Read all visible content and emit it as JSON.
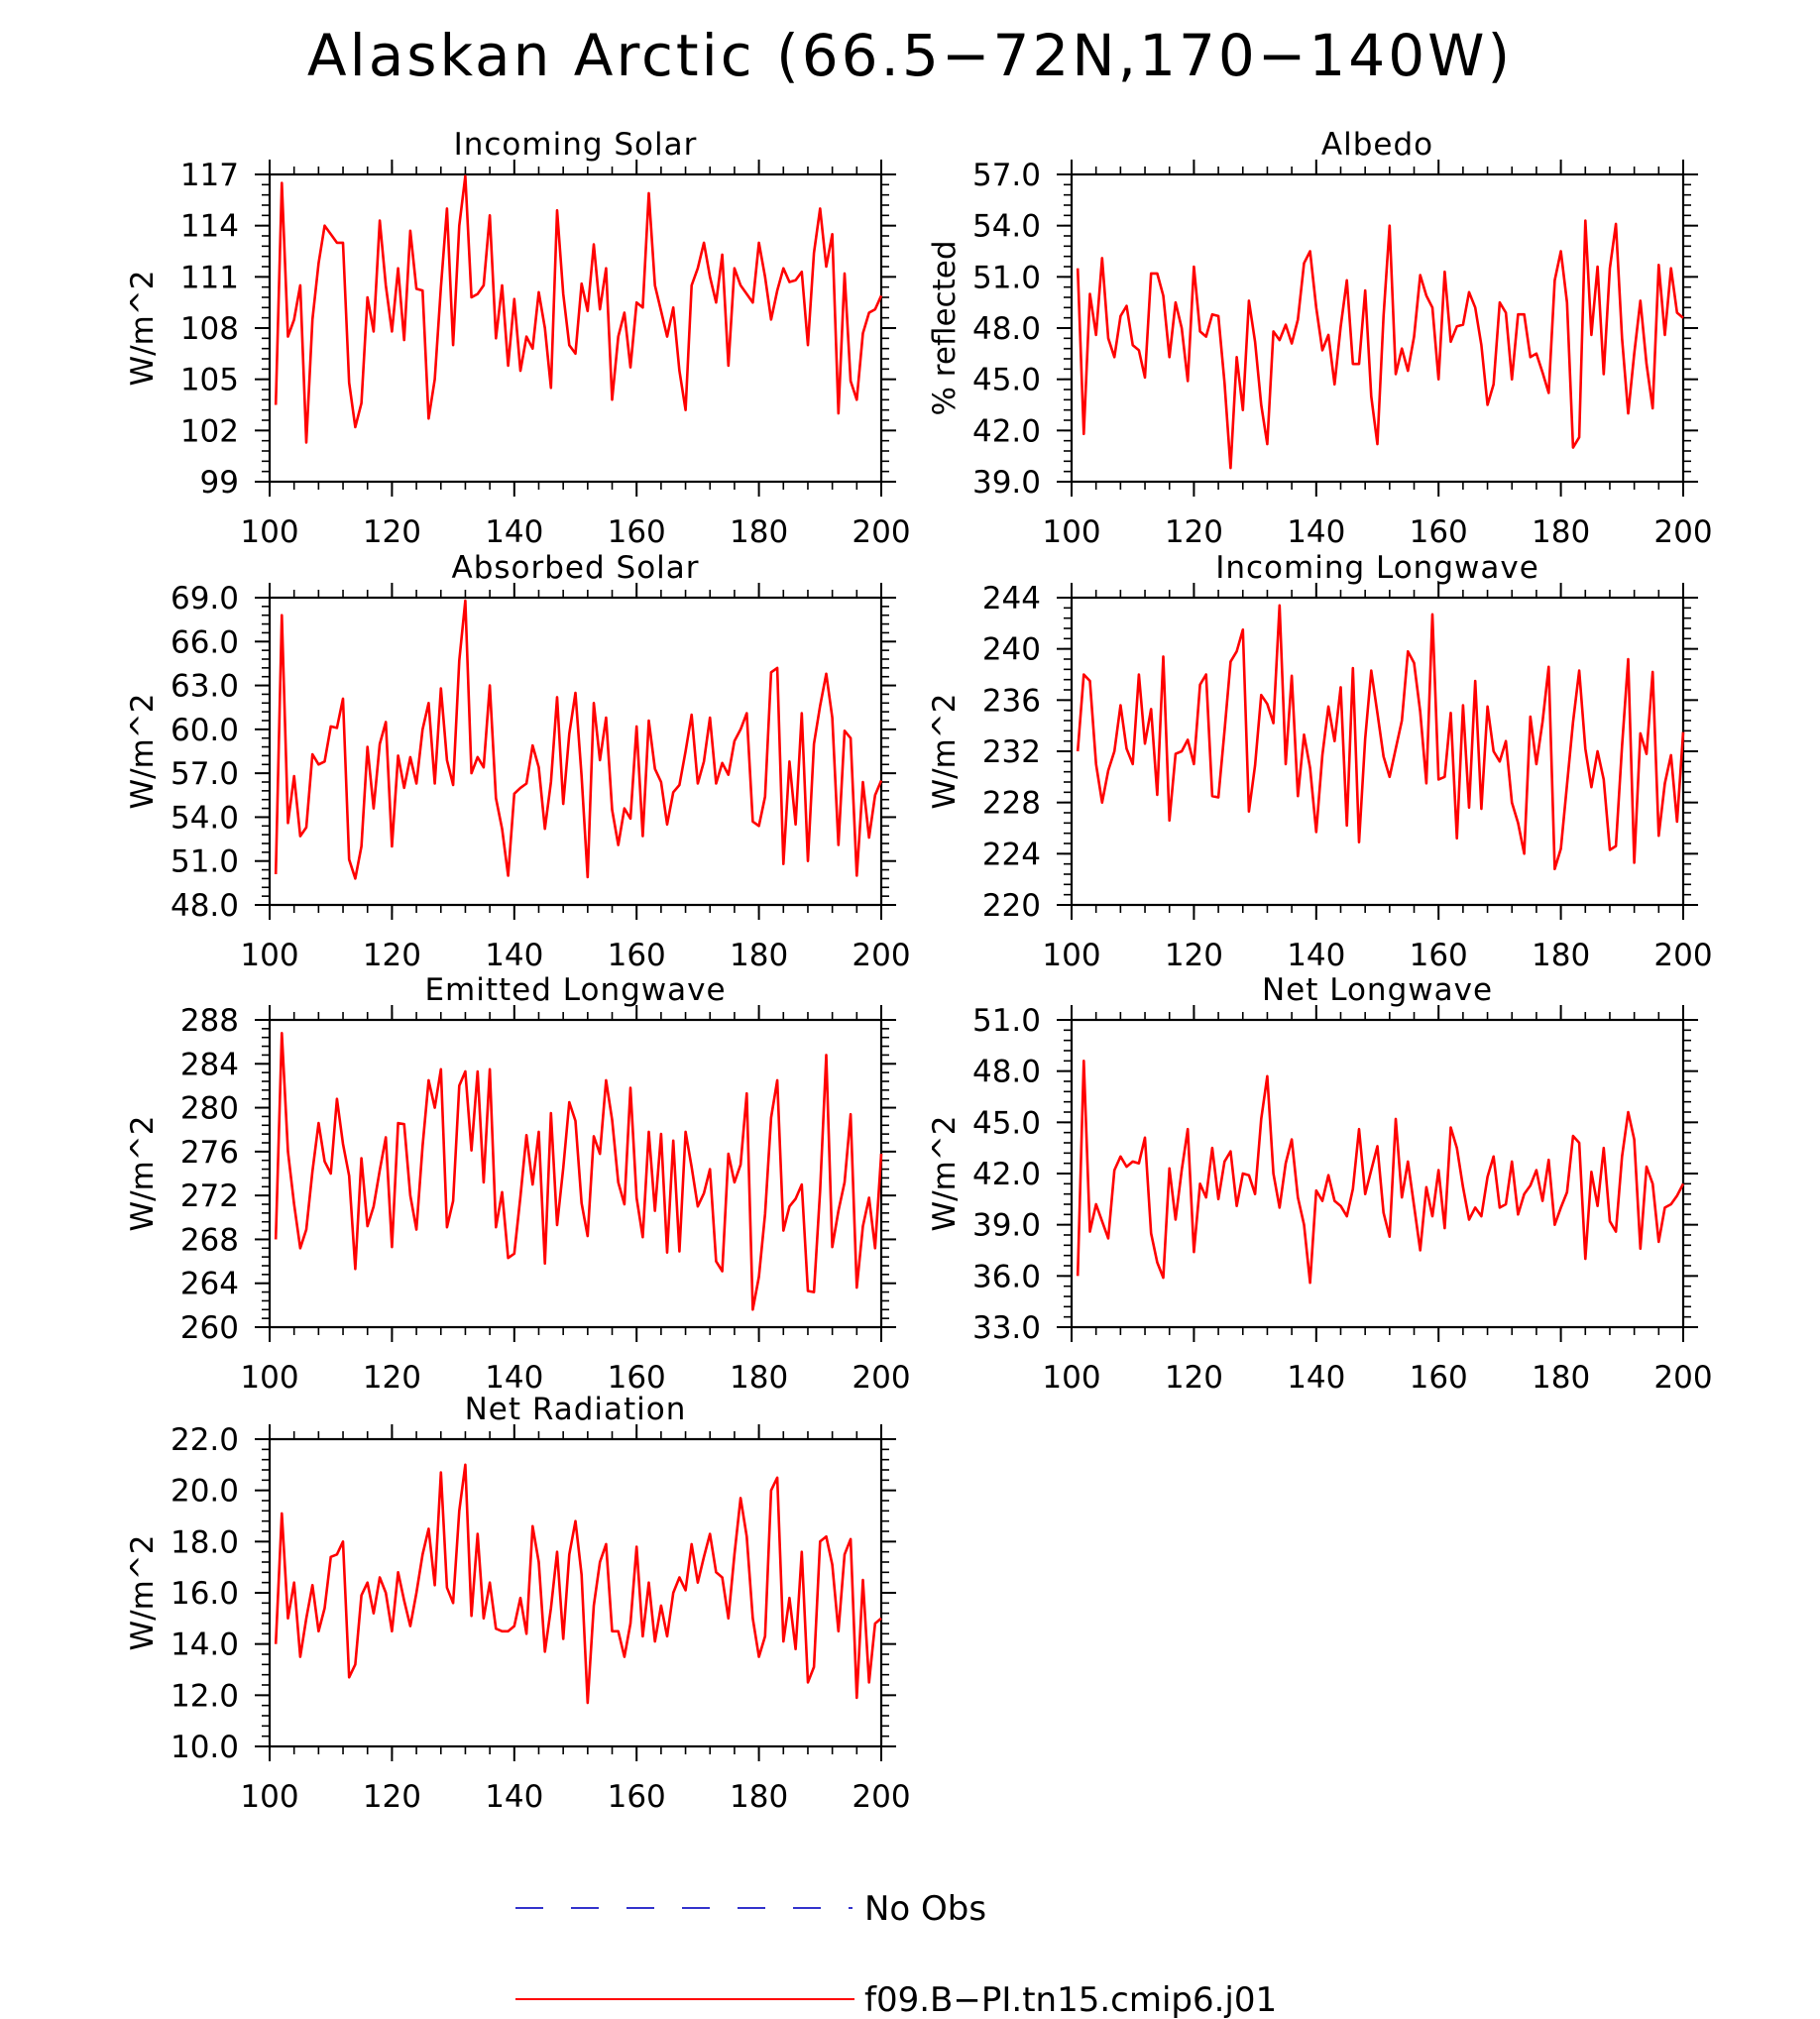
{
  "title": "Alaskan Arctic (66.5−72N,170−140W)",
  "colors": {
    "model": "#ff0000",
    "obs": "#3333cc",
    "axis": "#000000"
  },
  "legend": [
    {
      "label": "No Obs",
      "style": "dashed",
      "color": "#3333cc"
    },
    {
      "label": "f09.B−PI.tn15.cmip6.j01",
      "style": "solid",
      "color": "#ff0000"
    }
  ],
  "chart_data": [
    {
      "type": "line",
      "title": "Incoming Solar",
      "ylabel": "W/m^2",
      "xlim": [
        100,
        200
      ],
      "ylim": [
        99,
        117
      ],
      "xticks": [
        "100",
        "120",
        "140",
        "160",
        "180",
        "200"
      ],
      "yticks": [
        "99",
        "102",
        "105",
        "108",
        "111",
        "114",
        "117"
      ],
      "series": [
        {
          "name": "f09.B−PI.tn15.cmip6.j01",
          "x0": 101,
          "values": [
            103.5,
            116.5,
            107.5,
            108.5,
            110.5,
            101.3,
            108.5,
            111.8,
            114.0,
            113.5,
            113.0,
            113.0,
            104.8,
            102.2,
            103.6,
            109.8,
            107.8,
            114.3,
            110.5,
            107.8,
            111.5,
            107.3,
            113.7,
            110.3,
            110.2,
            102.7,
            105.0,
            110.4,
            115.0,
            107.0,
            114.0,
            116.9,
            109.8,
            110.0,
            110.5,
            114.6,
            107.4,
            110.5,
            105.8,
            109.7,
            105.5,
            107.5,
            106.8,
            110.1,
            108.0,
            104.5,
            114.9,
            110.0,
            107.0,
            106.5,
            110.6,
            109.0,
            112.9,
            109.1,
            111.5,
            103.8,
            107.5,
            108.9,
            105.7,
            109.5,
            109.2,
            115.9,
            110.5,
            109.0,
            107.5,
            109.2,
            105.5,
            103.2,
            110.5,
            111.5,
            113.0,
            111.0,
            109.5,
            112.3,
            105.8,
            111.5,
            110.5,
            110.0,
            109.5,
            113.0,
            111.0,
            108.5,
            110.2,
            111.5,
            110.7,
            110.8,
            111.3,
            107.0,
            112.4,
            115.0,
            111.6,
            113.5,
            103.0,
            111.2,
            104.9,
            103.8,
            107.7,
            108.9,
            109.1,
            109.9
          ]
        }
      ]
    },
    {
      "type": "line",
      "title": "Albedo",
      "ylabel": "% reflected",
      "xlim": [
        100,
        200
      ],
      "ylim": [
        39,
        57
      ],
      "xticks": [
        "100",
        "120",
        "140",
        "160",
        "180",
        "200"
      ],
      "yticks": [
        "39.0",
        "42.0",
        "45.0",
        "48.0",
        "51.0",
        "54.0",
        "57.0"
      ],
      "series": [
        {
          "name": "f09.B−PI.tn15.cmip6.j01",
          "x0": 101,
          "values": [
            51.5,
            41.8,
            50.0,
            47.6,
            52.1,
            47.4,
            46.3,
            48.7,
            49.3,
            47.0,
            46.7,
            45.1,
            51.2,
            51.2,
            49.9,
            46.3,
            49.5,
            48.0,
            44.9,
            51.6,
            47.8,
            47.5,
            48.8,
            48.7,
            44.8,
            39.8,
            46.3,
            43.2,
            49.6,
            47.2,
            43.5,
            41.2,
            47.8,
            47.3,
            48.2,
            47.1,
            48.5,
            51.8,
            52.5,
            49.2,
            46.7,
            47.6,
            44.7,
            48.1,
            50.8,
            45.9,
            45.9,
            50.2,
            44.0,
            41.2,
            48.7,
            54.0,
            45.3,
            46.8,
            45.5,
            47.5,
            51.1,
            49.9,
            49.2,
            45.0,
            51.3,
            47.2,
            48.1,
            48.2,
            50.1,
            49.2,
            47.0,
            43.5,
            44.7,
            49.5,
            48.9,
            45.0,
            48.8,
            48.8,
            46.3,
            46.5,
            45.4,
            44.2,
            50.8,
            52.5,
            49.5,
            41.0,
            41.6,
            54.3,
            47.6,
            51.6,
            45.3,
            51.5,
            54.1,
            47.4,
            43.0,
            46.5,
            49.6,
            45.9,
            43.3,
            51.7,
            47.6,
            51.5,
            48.9,
            48.6
          ]
        }
      ]
    },
    {
      "type": "line",
      "title": "Absorbed Solar",
      "ylabel": "W/m^2",
      "xlim": [
        100,
        200
      ],
      "ylim": [
        48,
        69
      ],
      "xticks": [
        "100",
        "120",
        "140",
        "160",
        "180",
        "200"
      ],
      "yticks": [
        "48.0",
        "51.0",
        "54.0",
        "57.0",
        "60.0",
        "63.0",
        "66.0",
        "69.0"
      ],
      "series": [
        {
          "name": "f09.B−PI.tn15.cmip6.j01",
          "x0": 101,
          "values": [
            50.1,
            67.8,
            53.6,
            56.8,
            52.7,
            53.3,
            58.3,
            57.6,
            57.8,
            60.2,
            60.1,
            62.1,
            51.1,
            49.8,
            52.0,
            58.8,
            54.6,
            59.0,
            60.5,
            52.0,
            58.2,
            56.0,
            58.1,
            56.3,
            60.0,
            61.8,
            56.3,
            62.8,
            57.9,
            56.2,
            64.7,
            68.8,
            57.0,
            58.1,
            57.4,
            63.0,
            55.3,
            53.2,
            50.0,
            55.6,
            56.0,
            56.3,
            58.9,
            57.4,
            53.2,
            56.4,
            62.2,
            54.9,
            59.7,
            62.5,
            56.8,
            49.9,
            61.8,
            57.9,
            60.8,
            54.5,
            52.1,
            54.6,
            53.9,
            60.2,
            52.7,
            60.6,
            57.3,
            56.4,
            53.5,
            55.7,
            56.2,
            58.5,
            61.0,
            56.3,
            57.8,
            60.8,
            56.3,
            57.7,
            56.9,
            59.2,
            60.0,
            61.1,
            53.7,
            53.4,
            55.4,
            63.9,
            64.2,
            50.8,
            57.8,
            53.5,
            61.1,
            51.0,
            59.0,
            61.6,
            63.8,
            60.8,
            52.1,
            59.9,
            59.4,
            50.0,
            56.4,
            52.6,
            55.5,
            56.5
          ]
        }
      ]
    },
    {
      "type": "line",
      "title": "Incoming Longwave",
      "ylabel": "W/m^2",
      "xlim": [
        100,
        200
      ],
      "ylim": [
        220,
        244
      ],
      "xticks": [
        "100",
        "120",
        "140",
        "160",
        "180",
        "200"
      ],
      "yticks": [
        "220",
        "224",
        "228",
        "232",
        "236",
        "240",
        "244"
      ],
      "series": [
        {
          "name": "f09.B−PI.tn15.cmip6.j01",
          "x0": 101,
          "values": [
            232.0,
            238.0,
            237.5,
            231.0,
            228.0,
            230.5,
            232.0,
            235.6,
            232.2,
            231.0,
            238.0,
            232.6,
            235.3,
            228.6,
            239.4,
            226.6,
            231.8,
            232.0,
            232.9,
            231.0,
            237.2,
            238.0,
            228.5,
            228.4,
            233.6,
            239.0,
            239.8,
            241.5,
            227.3,
            230.9,
            236.4,
            235.7,
            234.2,
            243.4,
            231.0,
            237.9,
            228.5,
            233.3,
            230.7,
            225.7,
            231.7,
            235.5,
            232.8,
            237.0,
            226.2,
            238.5,
            224.9,
            233.0,
            238.3,
            235.0,
            231.6,
            230.0,
            232.2,
            234.4,
            239.8,
            238.9,
            235.1,
            229.5,
            242.7,
            229.8,
            230.0,
            235.0,
            225.2,
            235.6,
            227.6,
            237.5,
            227.5,
            235.5,
            232.0,
            231.2,
            232.8,
            228.0,
            226.4,
            224.0,
            234.7,
            231.0,
            234.3,
            238.6,
            222.8,
            224.4,
            229.4,
            234.3,
            238.3,
            232.2,
            229.2,
            232.0,
            229.8,
            224.3,
            224.6,
            232.4,
            239.2,
            223.3,
            233.4,
            231.8,
            238.2,
            225.4,
            229.5,
            231.7,
            226.5,
            233.5
          ]
        }
      ]
    },
    {
      "type": "line",
      "title": "Emitted Longwave",
      "ylabel": "W/m^2",
      "xlim": [
        100,
        200
      ],
      "ylim": [
        260,
        288
      ],
      "xticks": [
        "100",
        "120",
        "140",
        "160",
        "180",
        "200"
      ],
      "yticks": [
        "260",
        "264",
        "268",
        "272",
        "276",
        "280",
        "284",
        "288"
      ],
      "series": [
        {
          "name": "f09.B−PI.tn15.cmip6.j01",
          "x0": 101,
          "values": [
            268.0,
            286.8,
            276.0,
            271.2,
            267.2,
            268.9,
            274.2,
            278.6,
            275.1,
            274.0,
            280.8,
            276.7,
            273.8,
            265.3,
            275.4,
            269.2,
            271.0,
            274.3,
            277.3,
            267.3,
            278.6,
            278.5,
            272.0,
            268.9,
            276.5,
            282.5,
            280.0,
            283.5,
            269.1,
            271.5,
            282.0,
            283.3,
            276.1,
            283.3,
            273.2,
            283.5,
            269.1,
            272.3,
            266.3,
            266.7,
            271.9,
            277.5,
            273.0,
            277.8,
            265.8,
            279.5,
            269.3,
            274.5,
            280.5,
            278.8,
            271.3,
            268.3,
            277.4,
            275.8,
            282.5,
            278.9,
            273.2,
            271.2,
            281.8,
            271.8,
            268.2,
            277.8,
            270.6,
            277.6,
            266.8,
            277.0,
            266.9,
            277.8,
            274.6,
            271.0,
            272.2,
            274.4,
            266.0,
            265.1,
            275.8,
            273.2,
            274.8,
            281.3,
            261.6,
            264.6,
            270.3,
            279.1,
            282.5,
            268.8,
            271.0,
            271.7,
            273.0,
            263.3,
            263.2,
            272.4,
            284.8,
            267.3,
            270.6,
            273.2,
            279.4,
            263.6,
            269.2,
            271.8,
            267.2,
            275.8
          ]
        }
      ]
    },
    {
      "type": "line",
      "title": "Net Longwave",
      "ylabel": "W/m^2",
      "xlim": [
        100,
        200
      ],
      "ylim": [
        33,
        51
      ],
      "xticks": [
        "100",
        "120",
        "140",
        "160",
        "180",
        "200"
      ],
      "yticks": [
        "33.0",
        "36.0",
        "39.0",
        "42.0",
        "45.0",
        "48.0",
        "51.0"
      ],
      "series": [
        {
          "name": "f09.B−PI.tn15.cmip6.j01",
          "x0": 101,
          "values": [
            36.0,
            48.6,
            38.6,
            40.2,
            39.2,
            38.2,
            42.2,
            43.0,
            42.4,
            42.7,
            42.6,
            44.1,
            38.5,
            36.8,
            35.9,
            42.3,
            39.3,
            42.2,
            44.6,
            37.4,
            41.4,
            40.6,
            43.5,
            40.5,
            42.7,
            43.3,
            40.1,
            42.0,
            41.9,
            40.8,
            45.2,
            47.7,
            42.0,
            40.0,
            42.6,
            44.0,
            40.6,
            39.0,
            35.6,
            41.0,
            40.4,
            41.9,
            40.4,
            40.1,
            39.5,
            41.1,
            44.6,
            40.8,
            42.2,
            43.6,
            39.7,
            38.3,
            45.2,
            40.6,
            42.7,
            40.1,
            37.5,
            41.2,
            39.5,
            42.2,
            38.8,
            44.7,
            43.5,
            41.2,
            39.3,
            40.0,
            39.5,
            41.8,
            43.0,
            40.0,
            40.2,
            42.7,
            39.6,
            40.8,
            41.3,
            42.2,
            40.4,
            42.8,
            39.0,
            40.0,
            40.9,
            44.2,
            43.8,
            37.0,
            42.1,
            40.1,
            43.5,
            39.2,
            38.6,
            43.0,
            45.6,
            44.0,
            37.6,
            42.4,
            41.4,
            38.0,
            40.0,
            40.2,
            40.7,
            41.4
          ]
        }
      ]
    },
    {
      "type": "line",
      "title": "Net Radiation",
      "ylabel": "W/m^2",
      "xlim": [
        100,
        200
      ],
      "ylim": [
        10,
        22
      ],
      "xticks": [
        "100",
        "120",
        "140",
        "160",
        "180",
        "200"
      ],
      "yticks": [
        "10.0",
        "12.0",
        "14.0",
        "16.0",
        "18.0",
        "20.0",
        "22.0"
      ],
      "series": [
        {
          "name": "f09.B−PI.tn15.cmip6.j01",
          "x0": 101,
          "values": [
            14.0,
            19.1,
            15.0,
            16.4,
            13.5,
            15.0,
            16.3,
            14.5,
            15.4,
            17.4,
            17.5,
            18.0,
            12.7,
            13.2,
            15.9,
            16.4,
            15.2,
            16.6,
            16.0,
            14.5,
            16.8,
            15.7,
            14.7,
            16.0,
            17.5,
            18.5,
            16.3,
            20.7,
            16.2,
            15.6,
            19.2,
            21.0,
            15.1,
            18.3,
            15.0,
            16.4,
            14.6,
            14.5,
            14.5,
            14.7,
            15.8,
            14.4,
            18.6,
            17.2,
            13.7,
            15.4,
            17.6,
            14.2,
            17.5,
            18.8,
            16.7,
            11.7,
            15.5,
            17.2,
            17.9,
            14.5,
            14.5,
            13.5,
            14.8,
            17.8,
            14.3,
            16.4,
            14.1,
            15.5,
            14.3,
            16.0,
            16.6,
            16.1,
            17.9,
            16.4,
            17.4,
            18.3,
            16.8,
            16.6,
            15.0,
            17.5,
            19.7,
            18.2,
            15.0,
            13.5,
            14.3,
            20.0,
            20.5,
            14.1,
            15.8,
            13.8,
            17.6,
            12.5,
            13.1,
            18.0,
            18.2,
            17.1,
            14.5,
            17.5,
            18.1,
            11.9,
            16.5,
            12.5,
            14.8,
            15.0
          ]
        }
      ]
    }
  ]
}
